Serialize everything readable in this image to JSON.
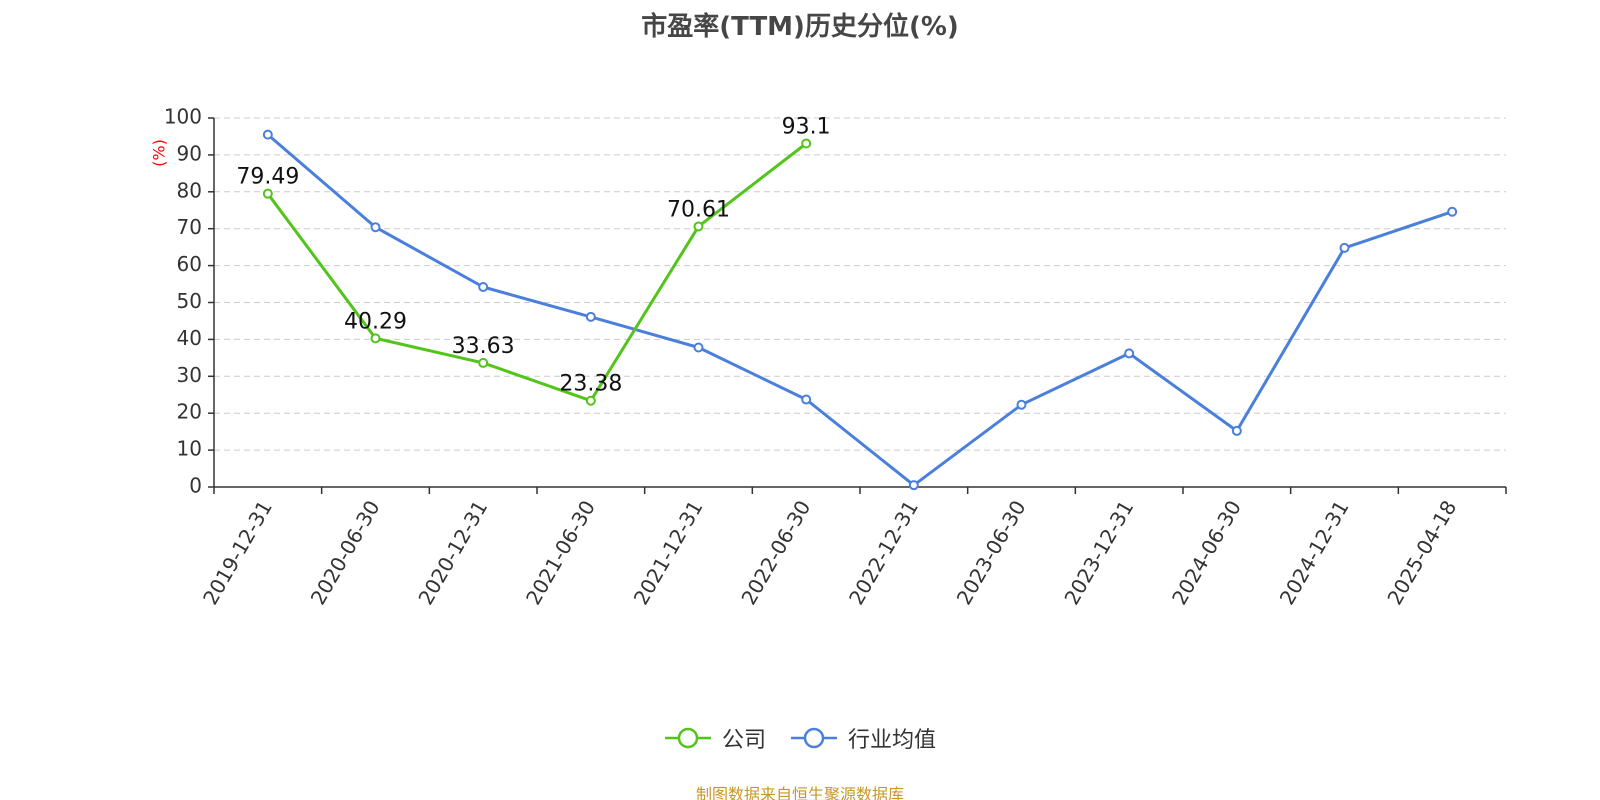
{
  "page": {
    "source_note": "制图数据来自恒生聚源数据库"
  },
  "chart_data": {
    "type": "line",
    "title": "市盈率(TTM)历史分位(%)",
    "ylabel": "(%)",
    "xlabel": "",
    "ylim": [
      0,
      100
    ],
    "yticks": [
      0,
      10,
      20,
      30,
      40,
      50,
      60,
      70,
      80,
      90,
      100
    ],
    "grid": true,
    "legend_position": "bottom",
    "categories": [
      "2019-12-31",
      "2020-06-30",
      "2020-12-31",
      "2021-06-30",
      "2021-12-31",
      "2022-06-30",
      "2022-12-31",
      "2023-06-30",
      "2023-12-31",
      "2024-06-30",
      "2024-12-31",
      "2025-04-18"
    ],
    "series": [
      {
        "name": "公司",
        "color": "#52c41a",
        "values": [
          79.49,
          40.29,
          33.63,
          23.38,
          70.61,
          93.1,
          null,
          null,
          null,
          null,
          null,
          null
        ],
        "show_labels": true
      },
      {
        "name": "行业均值",
        "color": "#4a7fdc",
        "values": [
          95.5,
          70.4,
          54.2,
          46.1,
          37.8,
          23.7,
          0.5,
          22.3,
          36.2,
          15.2,
          64.8,
          74.6
        ],
        "show_labels": false
      }
    ]
  }
}
